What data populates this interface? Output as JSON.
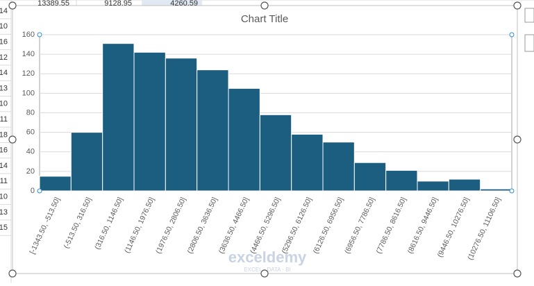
{
  "sheet": {
    "top_row": [
      "13389.55",
      "9128.95",
      "4260.59"
    ],
    "left_column": [
      "14",
      "10",
      "16",
      "12",
      "14",
      "13",
      "10",
      "11",
      "18",
      "16",
      "14",
      "11",
      "10",
      "13",
      "15"
    ]
  },
  "watermark": {
    "name": "exceldemy",
    "tagline": "EXCEL · DATA · BI"
  },
  "chart_data": {
    "type": "bar",
    "title": "Chart Title",
    "categories": [
      "[-1343.50, -513.50]",
      "(-513.50, 316.50]",
      "(316.50, 1146.50]",
      "(1146.50, 1976.50]",
      "(1976.50, 2806.50]",
      "(2806.50, 3636.50]",
      "(3636.50, 4466.50]",
      "(4466.50, 5296.50]",
      "(5296.50, 6126.50]",
      "(6126.50, 6956.50]",
      "(6956.50, 7786.50]",
      "(7786.50, 8616.50]",
      "(8616.50, 9446.50]",
      "(9446.50, 10276.50]",
      "(10276.50, 11106.50]"
    ],
    "values": [
      15,
      60,
      151,
      142,
      136,
      124,
      105,
      78,
      58,
      50,
      29,
      21,
      10,
      12,
      2
    ],
    "color": "#1b5e80",
    "ylim": [
      0,
      160
    ],
    "yticks": [
      0,
      20,
      40,
      60,
      80,
      100,
      120,
      140,
      160
    ],
    "grid": true
  }
}
